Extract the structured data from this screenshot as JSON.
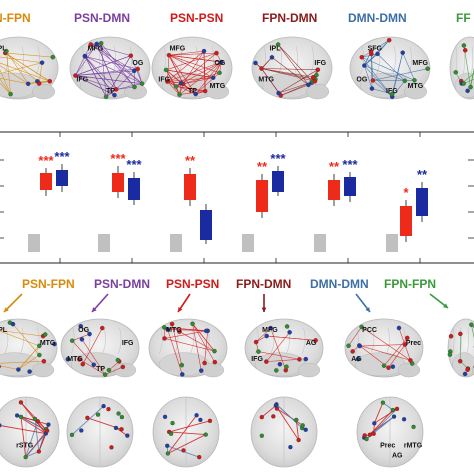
{
  "colors": {
    "psn": "#d11a1a",
    "dmn": "#1f3fa8",
    "fpn": "#2e8b2e",
    "psn_dmn": "#7a3fa0",
    "psn_fpn": "#d98a0a",
    "fpn_dmn": "#8b1a1a",
    "dmn_dmn": "#3c6fa8",
    "fpn_fpn": "#3a9a3a",
    "marker_red": "#ee2a1a",
    "marker_blue": "#1a2aa0",
    "marker_gray": "#c0c0c0"
  },
  "top_row": {
    "titles": [
      {
        "text": "N-FPN",
        "color": "#d98a0a"
      },
      {
        "text": "PSN-DMN",
        "color": "#7a3fa0"
      },
      {
        "text": "PSN-PSN",
        "color": "#d11a1a"
      },
      {
        "text": "FPN-DMN",
        "color": "#8b1a1a"
      },
      {
        "text": "DMN-DMN",
        "color": "#3c6fa8"
      },
      {
        "text": "FF",
        "color": "#3a9a3a"
      }
    ],
    "brain_labels": [
      [
        "IPL"
      ],
      [
        "MFG",
        "OG",
        "IFG",
        "TP"
      ],
      [
        "MFG",
        "OG",
        "IFG",
        "TP",
        "MTG"
      ],
      [
        "IPL",
        "IFG",
        "MTG"
      ],
      [
        "SFG",
        "MFG",
        "OG",
        "IFG",
        "MTG"
      ]
    ]
  },
  "box_panel": {
    "groups": [
      {
        "red_sig": "***",
        "blue_sig": "***"
      },
      {
        "red_sig": "***",
        "blue_sig": "***"
      },
      {
        "red_sig": "**",
        "blue_sig": ""
      },
      {
        "red_sig": "**",
        "blue_sig": "***"
      },
      {
        "red_sig": "**",
        "blue_sig": "***"
      },
      {
        "red_sig": "*",
        "blue_sig": "**"
      }
    ]
  },
  "bottom_row": {
    "titles": [
      {
        "text": "PSN-FPN",
        "color": "#d98a0a"
      },
      {
        "text": "PSN-DMN",
        "color": "#7a3fa0"
      },
      {
        "text": "PSN-PSN",
        "color": "#d11a1a"
      },
      {
        "text": "FPN-DMN",
        "color": "#8b1a1a"
      },
      {
        "text": "DMN-DMN",
        "color": "#3c6fa8"
      },
      {
        "text": "FPN-FPN",
        "color": "#3a9a3a"
      }
    ],
    "brain_labels": [
      [
        "IPL",
        "MTG"
      ],
      [
        "OG",
        "IFG",
        "MTG",
        "TP"
      ],
      [
        "MTG"
      ],
      [
        "MFG",
        "AG",
        "IFG"
      ],
      [
        "PCC",
        "Prec",
        "AG"
      ]
    ],
    "axial_labels": [
      [
        "rSTG"
      ],
      [],
      [],
      [],
      [
        "Prec",
        "AG",
        "rMTG"
      ]
    ]
  }
}
